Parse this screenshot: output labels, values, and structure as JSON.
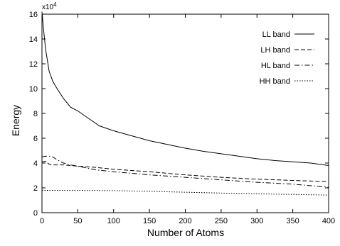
{
  "chart_data": {
    "type": "line",
    "title": "",
    "xlabel": "Number of Atoms",
    "ylabel": "Energy",
    "y_multiplier": "x10",
    "y_multiplier_exponent": "4",
    "xlim": [
      0,
      400
    ],
    "ylim": [
      0,
      16
    ],
    "xticks": [
      0,
      50,
      100,
      150,
      200,
      250,
      300,
      350,
      400
    ],
    "yticks": [
      0,
      2,
      4,
      6,
      8,
      10,
      12,
      14,
      16
    ],
    "grid": false,
    "legend_position": "top-right",
    "series": [
      {
        "name": "LL band",
        "dash": "solid",
        "x": [
          0,
          2,
          5,
          10,
          15,
          20,
          30,
          40,
          50,
          60,
          70,
          80,
          90,
          100,
          125,
          150,
          175,
          200,
          225,
          250,
          275,
          300,
          325,
          350,
          375,
          400
        ],
        "y": [
          16.2,
          14.9,
          13.2,
          11.4,
          10.6,
          10.1,
          9.2,
          8.5,
          8.2,
          7.8,
          7.4,
          7.0,
          6.8,
          6.6,
          6.2,
          5.8,
          5.5,
          5.2,
          4.95,
          4.75,
          4.55,
          4.35,
          4.2,
          4.1,
          4.0,
          3.8
        ]
      },
      {
        "name": "LH band",
        "dash": "dashed",
        "x": [
          0,
          5,
          10,
          15,
          20,
          30,
          40,
          50,
          75,
          100,
          150,
          200,
          250,
          300,
          350,
          400
        ],
        "y": [
          4.1,
          4.15,
          3.9,
          3.85,
          3.85,
          3.85,
          3.8,
          3.75,
          3.65,
          3.5,
          3.3,
          3.05,
          2.85,
          2.7,
          2.6,
          2.5
        ]
      },
      {
        "name": "HL band",
        "dash": "dashdot",
        "x": [
          0,
          5,
          10,
          15,
          20,
          30,
          40,
          50,
          75,
          100,
          150,
          200,
          250,
          300,
          350,
          400
        ],
        "y": [
          4.5,
          4.55,
          4.55,
          4.5,
          4.3,
          4.0,
          3.85,
          3.75,
          3.45,
          3.3,
          3.05,
          2.85,
          2.65,
          2.45,
          2.3,
          2.05
        ]
      },
      {
        "name": "HH band",
        "dash": "dotted",
        "x": [
          0,
          50,
          100,
          150,
          200,
          250,
          300,
          350,
          400
        ],
        "y": [
          1.8,
          1.8,
          1.78,
          1.72,
          1.65,
          1.58,
          1.52,
          1.47,
          1.42
        ]
      }
    ]
  }
}
